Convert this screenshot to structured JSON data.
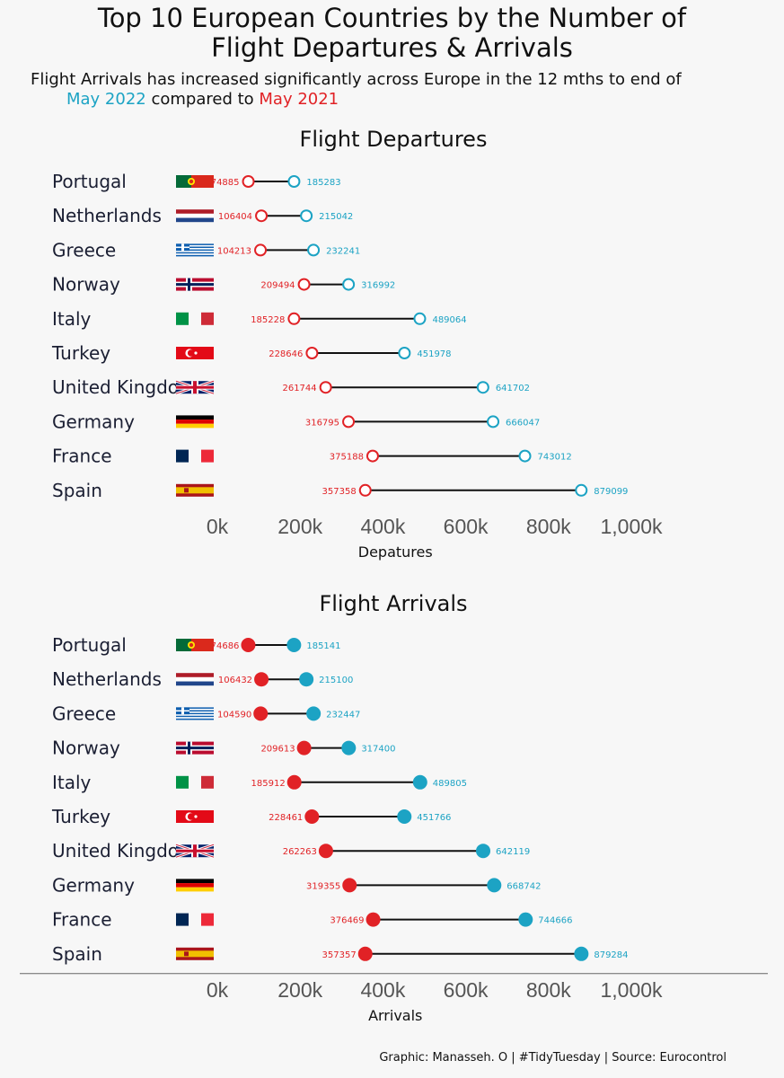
{
  "title_line1": "Top 10 European Countries by the Number of",
  "title_line2": "Flight Departures & Arrivals",
  "subtitle_line1": "Flight Arrivals has increased significantly across Europe in the 12 mths to end of",
  "subtitle_2022": "May 2022",
  "subtitle_mid": " compared to ",
  "subtitle_2021": "May 2021",
  "caption": "Graphic: Manasseh. O | #TidyTuesday | Source: Eurocontrol",
  "colors": {
    "y2022": "#1ca3c4",
    "y2021": "#e12226",
    "text": "#111111",
    "tick": "#555555"
  },
  "chart_data": [
    {
      "type": "dumbbell",
      "title": "Flight Departures",
      "xlabel": "Depatures",
      "xlim": [
        0,
        1000000
      ],
      "xticks": [
        0,
        200000,
        400000,
        600000,
        800000,
        1000000
      ],
      "xtick_labels": [
        "0k",
        "200k",
        "400k",
        "600k",
        "800k",
        "1,000k"
      ],
      "marker": "open",
      "categories": [
        "Portugal",
        "Netherlands",
        "Greece",
        "Norway",
        "Italy",
        "Turkey",
        "United Kingdom",
        "Germany",
        "France",
        "Spain"
      ],
      "series": [
        {
          "name": "May 2021",
          "values": [
            74885,
            106404,
            104213,
            209494,
            185228,
            228646,
            261744,
            316795,
            375188,
            357358
          ]
        },
        {
          "name": "May 2022",
          "values": [
            185283,
            215042,
            232241,
            316992,
            489064,
            451978,
            641702,
            666047,
            743012,
            879099
          ]
        }
      ]
    },
    {
      "type": "dumbbell",
      "title": "Flight Arrivals",
      "xlabel": "Arrivals",
      "xlim": [
        0,
        1000000
      ],
      "xticks": [
        0,
        200000,
        400000,
        600000,
        800000,
        1000000
      ],
      "xtick_labels": [
        "0k",
        "200k",
        "400k",
        "600k",
        "800k",
        "1,000k"
      ],
      "marker": "filled",
      "categories": [
        "Portugal",
        "Netherlands",
        "Greece",
        "Norway",
        "Italy",
        "Turkey",
        "United Kingdom",
        "Germany",
        "France",
        "Spain"
      ],
      "series": [
        {
          "name": "May 2021",
          "values": [
            74686,
            106432,
            104590,
            209613,
            185912,
            228461,
            262263,
            319355,
            376469,
            357357
          ]
        },
        {
          "name": "May 2022",
          "values": [
            185141,
            215100,
            232447,
            317400,
            489805,
            451766,
            642119,
            668742,
            744666,
            879284
          ]
        }
      ]
    }
  ]
}
